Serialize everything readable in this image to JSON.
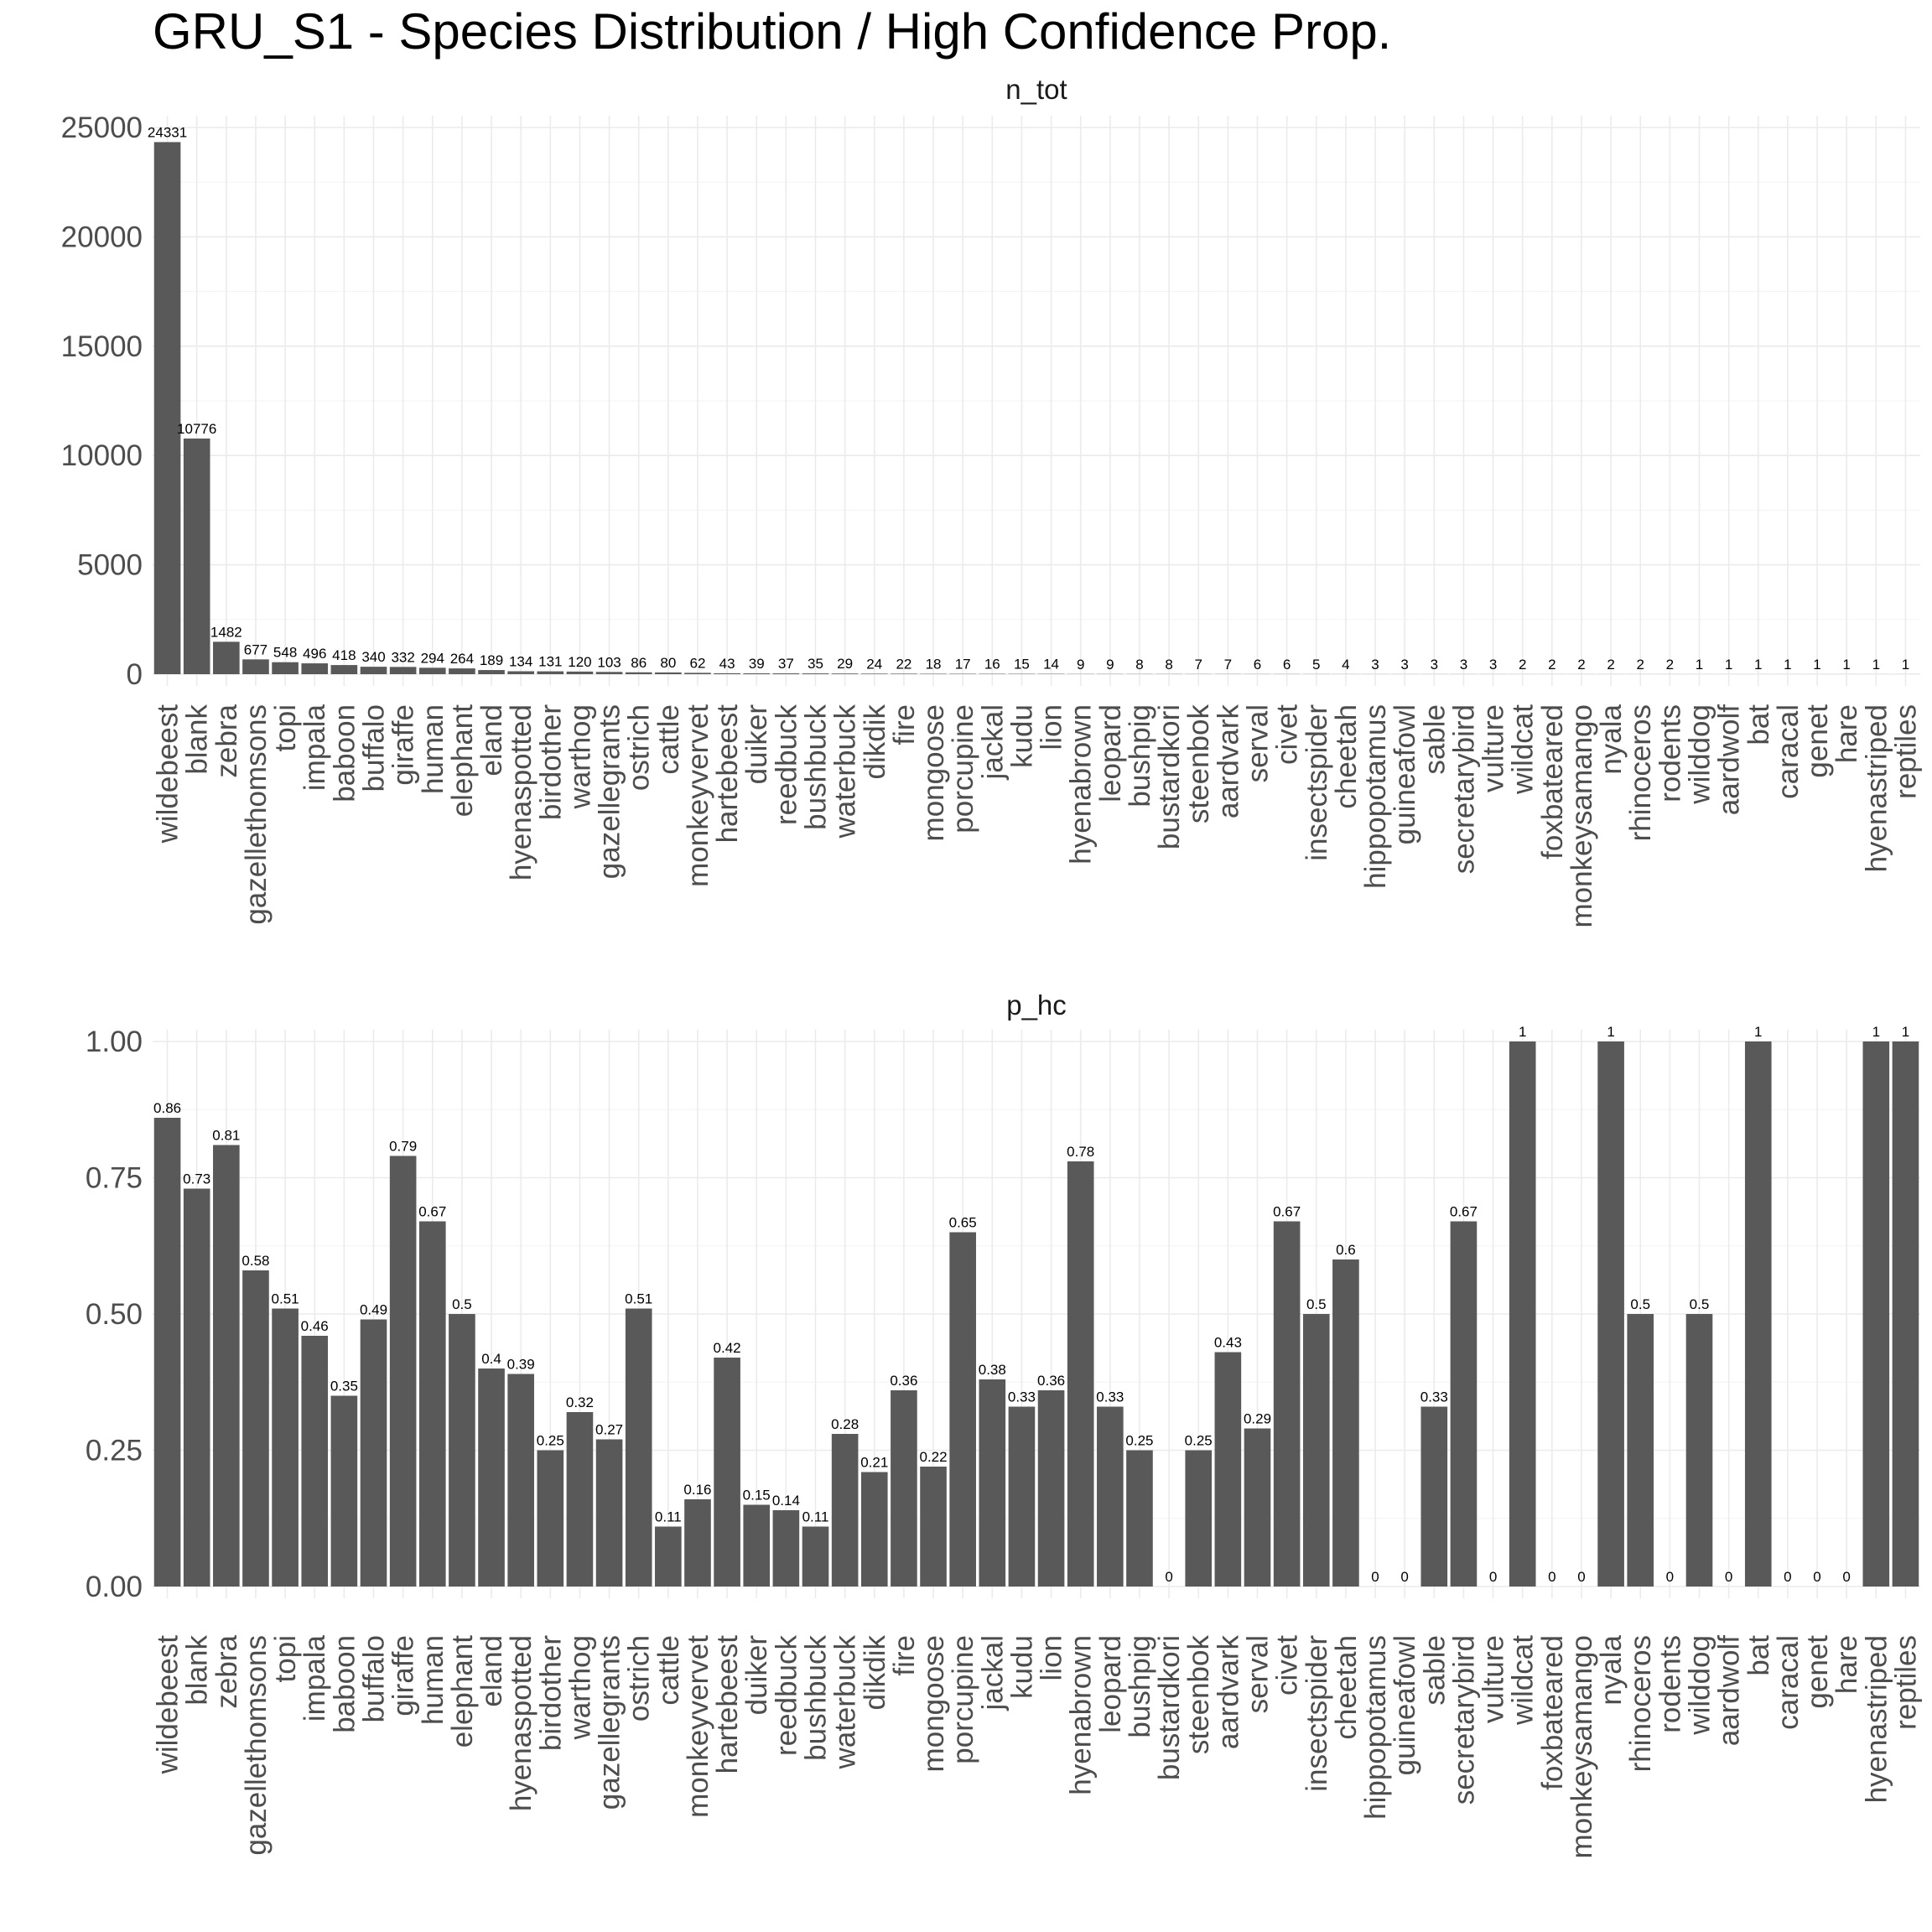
{
  "title": "GRU_S1 - Species Distribution / High Confidence Prop.",
  "colors": {
    "bar": "#595959",
    "grid": "#ebebeb",
    "text": "#4d4d4d",
    "background": "#ffffff"
  },
  "chart_data": [
    {
      "type": "bar",
      "title": "n_tot",
      "xlabel": "",
      "ylabel": "",
      "ylim": [
        0,
        25000
      ],
      "yticks": [
        "0",
        "5000",
        "10000",
        "15000",
        "20000",
        "25000"
      ],
      "grid": true,
      "categories": [
        "wildebeest",
        "blank",
        "zebra",
        "gazellethomsons",
        "topi",
        "impala",
        "baboon",
        "buffalo",
        "giraffe",
        "human",
        "elephant",
        "eland",
        "hyenaspotted",
        "birdother",
        "warthog",
        "gazellegrants",
        "ostrich",
        "cattle",
        "monkeyvervet",
        "hartebeest",
        "duiker",
        "reedbuck",
        "bushbuck",
        "waterbuck",
        "dikdik",
        "fire",
        "mongoose",
        "porcupine",
        "jackal",
        "kudu",
        "lion",
        "hyenabrown",
        "leopard",
        "bushpig",
        "bustardkori",
        "steenbok",
        "aardvark",
        "serval",
        "civet",
        "insectspider",
        "cheetah",
        "hippopotamus",
        "guineafowl",
        "sable",
        "secretarybird",
        "vulture",
        "wildcat",
        "foxbateared",
        "monkeysamango",
        "nyala",
        "rhinoceros",
        "rodents",
        "wilddog",
        "aardwolf",
        "bat",
        "caracal",
        "genet",
        "hare",
        "hyenastriped",
        "reptiles"
      ],
      "values": [
        24331,
        10776,
        1482,
        677,
        548,
        496,
        418,
        340,
        332,
        294,
        264,
        189,
        134,
        131,
        120,
        103,
        86,
        80,
        62,
        43,
        39,
        37,
        35,
        29,
        24,
        22,
        18,
        17,
        16,
        15,
        14,
        9,
        9,
        8,
        8,
        7,
        7,
        6,
        6,
        5,
        4,
        3,
        3,
        3,
        3,
        3,
        2,
        2,
        2,
        2,
        2,
        2,
        1,
        1,
        1,
        1,
        1,
        1,
        1,
        1
      ],
      "labels": [
        "24331",
        "10776",
        "1482",
        "677",
        "548",
        "496",
        "418",
        "340",
        "332",
        "294",
        "264",
        "189",
        "134",
        "131",
        "120",
        "103",
        "86",
        "80",
        "62",
        "43",
        "39",
        "37",
        "35",
        "29",
        "24",
        "22",
        "18",
        "17",
        "16",
        "15",
        "14",
        "9",
        "9",
        "8",
        "8",
        "7",
        "7",
        "6",
        "6",
        "5",
        "4",
        "3",
        "3",
        "3",
        "3",
        "3",
        "2",
        "2",
        "2",
        "2",
        "2",
        "2",
        "1",
        "1",
        "1",
        "1",
        "1",
        "1",
        "1",
        "1"
      ]
    },
    {
      "type": "bar",
      "title": "p_hc",
      "xlabel": "",
      "ylabel": "",
      "ylim": [
        0,
        1
      ],
      "yticks": [
        "0.00",
        "0.25",
        "0.50",
        "0.75",
        "1.00"
      ],
      "grid": true,
      "categories": [
        "wildebeest",
        "blank",
        "zebra",
        "gazellethomsons",
        "topi",
        "impala",
        "baboon",
        "buffalo",
        "giraffe",
        "human",
        "elephant",
        "eland",
        "hyenaspotted",
        "birdother",
        "warthog",
        "gazellegrants",
        "ostrich",
        "cattle",
        "monkeyvervet",
        "hartebeest",
        "duiker",
        "reedbuck",
        "bushbuck",
        "waterbuck",
        "dikdik",
        "fire",
        "mongoose",
        "porcupine",
        "jackal",
        "kudu",
        "lion",
        "hyenabrown",
        "leopard",
        "bushpig",
        "bustardkori",
        "steenbok",
        "aardvark",
        "serval",
        "civet",
        "insectspider",
        "cheetah",
        "hippopotamus",
        "guineafowl",
        "sable",
        "secretarybird",
        "vulture",
        "wildcat",
        "foxbateared",
        "monkeysamango",
        "nyala",
        "rhinoceros",
        "rodents",
        "wilddog",
        "aardwolf",
        "bat",
        "caracal",
        "genet",
        "hare",
        "hyenastriped",
        "reptiles"
      ],
      "values": [
        0.86,
        0.73,
        0.81,
        0.58,
        0.51,
        0.46,
        0.35,
        0.49,
        0.79,
        0.67,
        0.5,
        0.4,
        0.39,
        0.25,
        0.32,
        0.27,
        0.51,
        0.11,
        0.16,
        0.42,
        0.15,
        0.14,
        0.11,
        0.28,
        0.21,
        0.36,
        0.22,
        0.65,
        0.38,
        0.33,
        0.36,
        0.78,
        0.33,
        0.25,
        0,
        0.25,
        0.43,
        0.29,
        0.67,
        0.5,
        0.6,
        0,
        0,
        0.33,
        0.67,
        0,
        1,
        0,
        0,
        1,
        0.5,
        0,
        0.5,
        0,
        1,
        0,
        0,
        0,
        1,
        1
      ],
      "labels": [
        "0.86",
        "0.73",
        "0.81",
        "0.58",
        "0.51",
        "0.46",
        "0.35",
        "0.49",
        "0.79",
        "0.67",
        "0.5",
        "0.4",
        "0.39",
        "0.25",
        "0.32",
        "0.27",
        "0.51",
        "0.11",
        "0.16",
        "0.42",
        "0.15",
        "0.14",
        "0.11",
        "0.28",
        "0.21",
        "0.36",
        "0.22",
        "0.65",
        "0.38",
        "0.33",
        "0.36",
        "0.78",
        "0.33",
        "0.25",
        "0",
        "0.25",
        "0.43",
        "0.29",
        "0.67",
        "0.5",
        "0.6",
        "0",
        "0",
        "0.33",
        "0.67",
        "0",
        "1",
        "0",
        "0",
        "1",
        "0.5",
        "0",
        "0.5",
        "0",
        "1",
        "0",
        "0",
        "0",
        "1",
        "1"
      ]
    }
  ]
}
